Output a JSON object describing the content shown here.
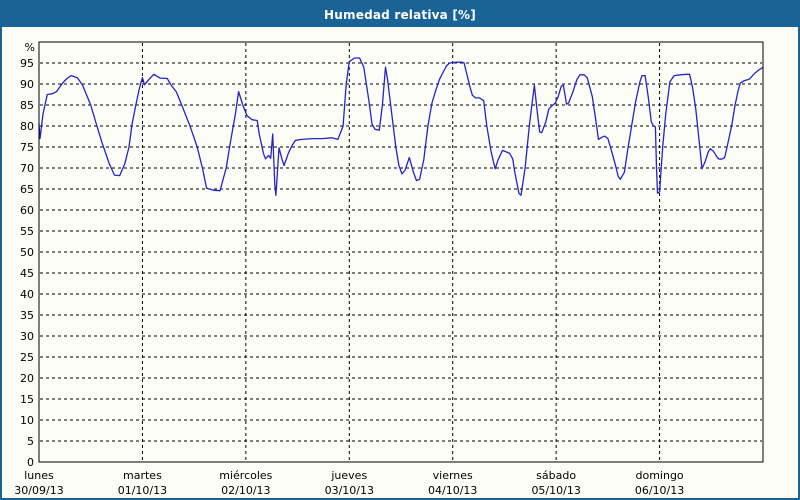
{
  "window": {
    "title": "Humedad relativa [%]",
    "titlebar_bg": "#1a6396",
    "titlebar_text_color": "#ffffff",
    "frame_border_color": "#1a6396",
    "page_bg": "#fdfdf8"
  },
  "chart_data": {
    "type": "line",
    "title": "Humedad relativa [%]",
    "ylabel": "%",
    "xlabel": "",
    "ylim": [
      0,
      100
    ],
    "ytick_step": 5,
    "ytick_labels": [
      "0",
      "5",
      "10",
      "15",
      "20",
      "25",
      "30",
      "35",
      "40",
      "45",
      "50",
      "55",
      "60",
      "65",
      "70",
      "75",
      "80",
      "85",
      "90",
      "95"
    ],
    "grid": "dashed",
    "plot_border_color": "#000000",
    "grid_color": "#000000",
    "x_ticks": [
      {
        "weekday": "lunes",
        "date": "30/09/13"
      },
      {
        "weekday": "martes",
        "date": "01/10/13"
      },
      {
        "weekday": "miércoles",
        "date": "02/10/13"
      },
      {
        "weekday": "jueves",
        "date": "03/10/13"
      },
      {
        "weekday": "viernes",
        "date": "04/10/13"
      },
      {
        "weekday": "sábado",
        "date": "05/10/13"
      },
      {
        "weekday": "domingo",
        "date": "06/10/13"
      }
    ],
    "series": [
      {
        "name": "Humedad relativa",
        "color": "#2323c8",
        "points": [
          [
            0.0,
            80.5
          ],
          [
            0.01,
            77.0
          ],
          [
            0.04,
            83.0
          ],
          [
            0.08,
            87.5
          ],
          [
            0.13,
            87.7
          ],
          [
            0.17,
            88.2
          ],
          [
            0.22,
            90.0
          ],
          [
            0.27,
            91.3
          ],
          [
            0.31,
            92.0
          ],
          [
            0.37,
            91.5
          ],
          [
            0.42,
            89.8
          ],
          [
            0.5,
            85.0
          ],
          [
            0.56,
            80.0
          ],
          [
            0.61,
            76.0
          ],
          [
            0.68,
            71.0
          ],
          [
            0.73,
            68.3
          ],
          [
            0.78,
            68.2
          ],
          [
            0.83,
            71.0
          ],
          [
            0.87,
            75.0
          ],
          [
            0.9,
            80.5
          ],
          [
            0.94,
            85.4
          ],
          [
            0.97,
            88.9
          ],
          [
            1.0,
            91.5
          ],
          [
            1.02,
            89.8
          ],
          [
            1.06,
            91.0
          ],
          [
            1.11,
            92.3
          ],
          [
            1.17,
            91.4
          ],
          [
            1.24,
            91.3
          ],
          [
            1.27,
            90.0
          ],
          [
            1.33,
            88.0
          ],
          [
            1.38,
            85.0
          ],
          [
            1.46,
            80.0
          ],
          [
            1.53,
            75.0
          ],
          [
            1.58,
            70.0
          ],
          [
            1.62,
            65.2
          ],
          [
            1.69,
            64.7
          ],
          [
            1.75,
            64.6
          ],
          [
            1.81,
            70.0
          ],
          [
            1.85,
            76.0
          ],
          [
            1.9,
            83.0
          ],
          [
            1.93,
            88.2
          ],
          [
            1.97,
            85.0
          ],
          [
            2.01,
            82.5
          ],
          [
            2.06,
            81.5
          ],
          [
            2.11,
            81.3
          ],
          [
            2.13,
            78.0
          ],
          [
            2.17,
            73.5
          ],
          [
            2.19,
            72.2
          ],
          [
            2.22,
            73.0
          ],
          [
            2.24,
            72.3
          ],
          [
            2.26,
            78.1
          ],
          [
            2.28,
            66.0
          ],
          [
            2.29,
            63.5
          ],
          [
            2.32,
            74.8
          ],
          [
            2.35,
            72.0
          ],
          [
            2.37,
            70.6
          ],
          [
            2.41,
            73.5
          ],
          [
            2.45,
            75.5
          ],
          [
            2.48,
            76.6
          ],
          [
            2.54,
            76.8
          ],
          [
            2.64,
            77.0
          ],
          [
            2.74,
            77.0
          ],
          [
            2.83,
            77.2
          ],
          [
            2.89,
            76.8
          ],
          [
            2.94,
            80.0
          ],
          [
            2.97,
            90.0
          ],
          [
            3.0,
            95.3
          ],
          [
            3.05,
            96.2
          ],
          [
            3.1,
            96.2
          ],
          [
            3.14,
            94.0
          ],
          [
            3.19,
            86.0
          ],
          [
            3.22,
            80.5
          ],
          [
            3.25,
            79.2
          ],
          [
            3.29,
            79.0
          ],
          [
            3.32,
            85.0
          ],
          [
            3.35,
            94.0
          ],
          [
            3.37,
            91.0
          ],
          [
            3.41,
            83.0
          ],
          [
            3.45,
            75.0
          ],
          [
            3.48,
            70.6
          ],
          [
            3.51,
            68.6
          ],
          [
            3.54,
            69.5
          ],
          [
            3.58,
            72.5
          ],
          [
            3.62,
            69.0
          ],
          [
            3.65,
            67.0
          ],
          [
            3.68,
            67.3
          ],
          [
            3.72,
            72.0
          ],
          [
            3.76,
            80.0
          ],
          [
            3.8,
            85.5
          ],
          [
            3.83,
            88.0
          ],
          [
            3.87,
            91.0
          ],
          [
            3.9,
            92.5
          ],
          [
            3.94,
            94.3
          ],
          [
            3.97,
            95.0
          ],
          [
            4.04,
            95.2
          ],
          [
            4.09,
            95.2
          ],
          [
            4.11,
            95.0
          ],
          [
            4.14,
            92.0
          ],
          [
            4.17,
            89.0
          ],
          [
            4.19,
            87.3
          ],
          [
            4.22,
            86.7
          ],
          [
            4.26,
            86.7
          ],
          [
            4.3,
            86.0
          ],
          [
            4.33,
            80.0
          ],
          [
            4.37,
            74.0
          ],
          [
            4.41,
            69.8
          ],
          [
            4.44,
            72.0
          ],
          [
            4.48,
            74.2
          ],
          [
            4.52,
            73.8
          ],
          [
            4.55,
            73.5
          ],
          [
            4.58,
            72.2
          ],
          [
            4.6,
            69.0
          ],
          [
            4.64,
            64.0
          ],
          [
            4.66,
            63.5
          ],
          [
            4.7,
            70.0
          ],
          [
            4.74,
            80.0
          ],
          [
            4.77,
            86.0
          ],
          [
            4.79,
            89.7
          ],
          [
            4.81,
            85.0
          ],
          [
            4.84,
            78.6
          ],
          [
            4.86,
            78.4
          ],
          [
            4.9,
            81.0
          ],
          [
            4.93,
            84.1
          ],
          [
            4.96,
            84.8
          ],
          [
            4.99,
            85.4
          ],
          [
            5.02,
            87.0
          ],
          [
            5.05,
            89.5
          ],
          [
            5.07,
            89.7
          ],
          [
            5.1,
            85.2
          ],
          [
            5.12,
            85.5
          ],
          [
            5.16,
            88.0
          ],
          [
            5.2,
            91.0
          ],
          [
            5.23,
            92.2
          ],
          [
            5.27,
            92.2
          ],
          [
            5.3,
            91.5
          ],
          [
            5.35,
            87.0
          ],
          [
            5.38,
            82.0
          ],
          [
            5.41,
            76.8
          ],
          [
            5.44,
            77.3
          ],
          [
            5.47,
            77.6
          ],
          [
            5.5,
            77.0
          ],
          [
            5.53,
            74.5
          ],
          [
            5.57,
            71.0
          ],
          [
            5.6,
            68.0
          ],
          [
            5.62,
            67.3
          ],
          [
            5.66,
            69.0
          ],
          [
            5.69,
            74.0
          ],
          [
            5.73,
            80.0
          ],
          [
            5.77,
            86.0
          ],
          [
            5.81,
            90.5
          ],
          [
            5.83,
            92.0
          ],
          [
            5.86,
            92.0
          ],
          [
            5.89,
            87.0
          ],
          [
            5.92,
            81.0
          ],
          [
            5.94,
            80.0
          ],
          [
            5.96,
            79.8
          ],
          [
            5.97,
            70.0
          ],
          [
            5.98,
            64.0
          ],
          [
            6.0,
            64.3
          ],
          [
            6.03,
            75.0
          ],
          [
            6.06,
            83.0
          ],
          [
            6.1,
            90.5
          ],
          [
            6.14,
            92.0
          ],
          [
            6.2,
            92.2
          ],
          [
            6.26,
            92.3
          ],
          [
            6.29,
            92.3
          ],
          [
            6.32,
            89.0
          ],
          [
            6.35,
            84.0
          ],
          [
            6.38,
            77.0
          ],
          [
            6.41,
            69.8
          ],
          [
            6.44,
            71.5
          ],
          [
            6.47,
            73.8
          ],
          [
            6.49,
            74.6
          ],
          [
            6.52,
            74.0
          ],
          [
            6.55,
            72.8
          ],
          [
            6.57,
            72.2
          ],
          [
            6.6,
            72.1
          ],
          [
            6.63,
            72.5
          ],
          [
            6.67,
            77.0
          ],
          [
            6.7,
            80.5
          ],
          [
            6.73,
            85.0
          ],
          [
            6.76,
            88.5
          ],
          [
            6.78,
            90.2
          ],
          [
            6.82,
            90.8
          ],
          [
            6.85,
            91.0
          ],
          [
            6.87,
            91.2
          ],
          [
            6.91,
            92.3
          ],
          [
            6.95,
            93.2
          ],
          [
            6.99,
            93.8
          ],
          [
            7.0,
            94.0
          ]
        ]
      }
    ]
  }
}
